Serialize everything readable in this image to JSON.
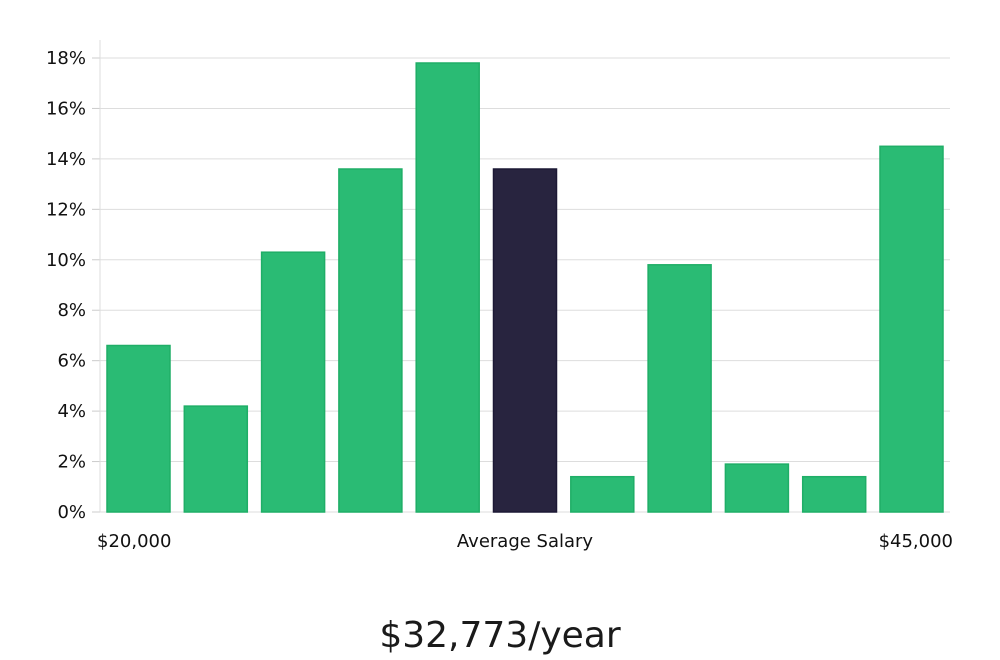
{
  "colors": {
    "bar": "#2abb74",
    "bar_stroke": "#1fae67",
    "highlight": "#28243f",
    "highlight_stroke": "#1c1835",
    "grid": "#dddddd",
    "axis": "#cccccc",
    "text": "#111111"
  },
  "chart_data": {
    "type": "bar",
    "title": "",
    "xlabel": "Average Salary",
    "ylabel": "",
    "x_min_label": "$20,000",
    "x_max_label": "$45,000",
    "ylim": [
      0,
      18
    ],
    "y_ticks": [
      0,
      2,
      4,
      6,
      8,
      10,
      12,
      14,
      16,
      18
    ],
    "y_tick_labels": [
      "0%",
      "2%",
      "4%",
      "6%",
      "8%",
      "10%",
      "12%",
      "14%",
      "16%",
      "18%"
    ],
    "values": [
      6.6,
      4.2,
      10.3,
      13.6,
      17.8,
      13.6,
      1.4,
      9.8,
      1.9,
      1.4,
      14.5
    ],
    "highlight_index": 5,
    "grid": true
  },
  "headline": "$32,773/year"
}
